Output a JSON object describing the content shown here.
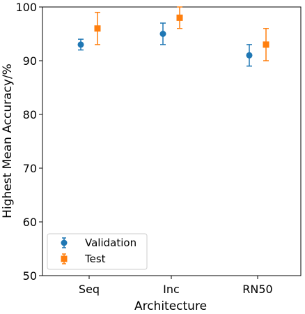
{
  "chart_data": {
    "type": "scatter",
    "xlabel": "Architecture",
    "ylabel": "Highest Mean Accuracy/%",
    "categories": [
      "Seq",
      "Inc",
      "RN50"
    ],
    "ylim": [
      50,
      100
    ],
    "yticks": [
      50,
      60,
      70,
      80,
      90,
      100
    ],
    "grid": false,
    "legend_position": "lower-left",
    "series": [
      {
        "name": "Validation",
        "marker": "circle",
        "color": "#1f77b4",
        "values": [
          93,
          95,
          91
        ],
        "err": [
          1,
          2,
          2
        ]
      },
      {
        "name": "Test",
        "marker": "square",
        "color": "#ff7f0e",
        "values": [
          96,
          98,
          93
        ],
        "err": [
          3,
          2,
          3
        ]
      }
    ]
  }
}
